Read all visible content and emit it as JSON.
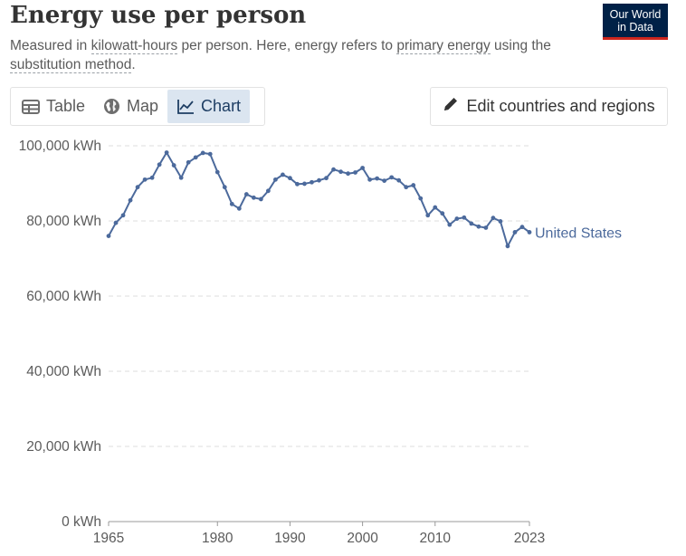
{
  "header": {
    "title": "Energy use per person",
    "subtitle_parts": {
      "p1": "Measured in ",
      "link1": "kilowatt-hours",
      "p2": " per person. Here, energy refers to ",
      "link2": "primary energy",
      "p3": " using the ",
      "link3": "substitution method",
      "p4": "."
    },
    "logo_line1": "Our World",
    "logo_line2": "in Data"
  },
  "tabs": [
    {
      "label": "Table",
      "icon": "table-icon"
    },
    {
      "label": "Map",
      "icon": "globe-icon"
    },
    {
      "label": "Chart",
      "icon": "line-chart-icon",
      "active": true
    }
  ],
  "edit_button": {
    "label": "Edit countries and regions",
    "icon": "pencil-icon"
  },
  "colors": {
    "series": "#4c6a9c",
    "grid": "#dddddd",
    "logo_bg": "#002147",
    "logo_accent": "#ce261e",
    "active_tab": "#dbe5f0"
  },
  "chart_data": {
    "type": "line",
    "title": "Energy use per person",
    "ylim": [
      0,
      100000
    ],
    "xlim": [
      1965,
      2023
    ],
    "y_ticks": [
      {
        "value": 0,
        "label": "0 kWh"
      },
      {
        "value": 20000,
        "label": "20,000 kWh"
      },
      {
        "value": 40000,
        "label": "40,000 kWh"
      },
      {
        "value": 60000,
        "label": "60,000 kWh"
      },
      {
        "value": 80000,
        "label": "80,000 kWh"
      },
      {
        "value": 100000,
        "label": "100,000 kWh"
      }
    ],
    "x_ticks": [
      1965,
      1980,
      1990,
      2000,
      2010,
      2023
    ],
    "grid": "horizontal-dashed",
    "series": [
      {
        "name": "United States",
        "x": [
          1965,
          1966,
          1967,
          1968,
          1969,
          1970,
          1971,
          1972,
          1973,
          1974,
          1975,
          1976,
          1977,
          1978,
          1979,
          1980,
          1981,
          1982,
          1983,
          1984,
          1985,
          1986,
          1987,
          1988,
          1989,
          1990,
          1991,
          1992,
          1993,
          1994,
          1995,
          1996,
          1997,
          1998,
          1999,
          2000,
          2001,
          2002,
          2003,
          2004,
          2005,
          2006,
          2007,
          2008,
          2009,
          2010,
          2011,
          2012,
          2013,
          2014,
          2015,
          2016,
          2017,
          2018,
          2019,
          2020,
          2021,
          2022,
          2023
        ],
        "y": [
          76000,
          79500,
          81500,
          85500,
          89000,
          91000,
          91500,
          95000,
          98200,
          94800,
          91500,
          95600,
          96900,
          98100,
          97800,
          93000,
          89000,
          84500,
          83300,
          87100,
          86200,
          85800,
          88000,
          91000,
          92300,
          91400,
          89800,
          89900,
          90300,
          90800,
          91400,
          93700,
          93100,
          92600,
          92900,
          94100,
          91000,
          91300,
          90700,
          91600,
          90800,
          89000,
          89500,
          86000,
          81500,
          83600,
          82000,
          79000,
          80600,
          80900,
          79300,
          78500,
          78200,
          80800,
          79900,
          73300,
          77000,
          78400,
          77000
        ]
      }
    ]
  }
}
